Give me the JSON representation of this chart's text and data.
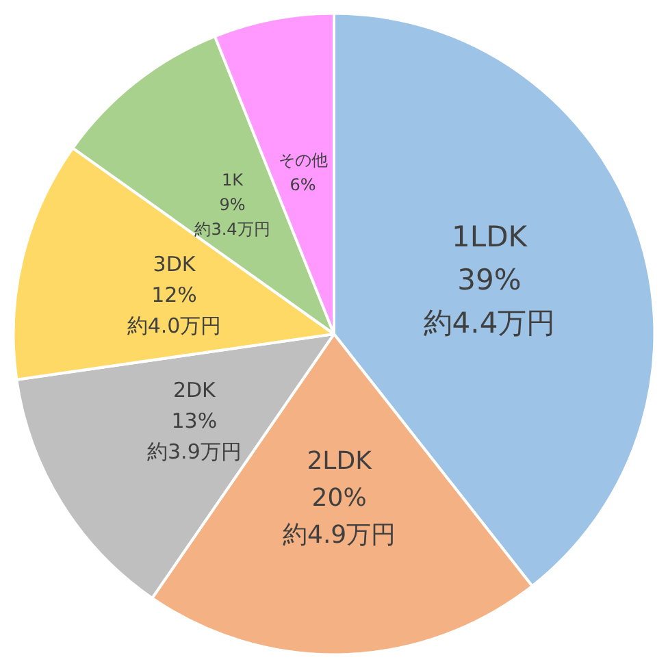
{
  "chart_data": {
    "type": "pie",
    "categories": [
      "1LDK",
      "2LDK",
      "2DK",
      "3DK",
      "1K",
      "その他"
    ],
    "values": [
      39,
      20,
      13,
      12,
      9,
      6
    ],
    "colors": [
      "#9dc3e6",
      "#f4b183",
      "#bfbfbf",
      "#ffd966",
      "#a9d18e",
      "#ff99ff"
    ],
    "value_labels": [
      "39%\n約4.4万円",
      "20%\n約4.9万円",
      "13%\n約3.9万円",
      "12%\n約4.0万円",
      "9%\n約3.4万円",
      "6%"
    ],
    "legend": false
  }
}
